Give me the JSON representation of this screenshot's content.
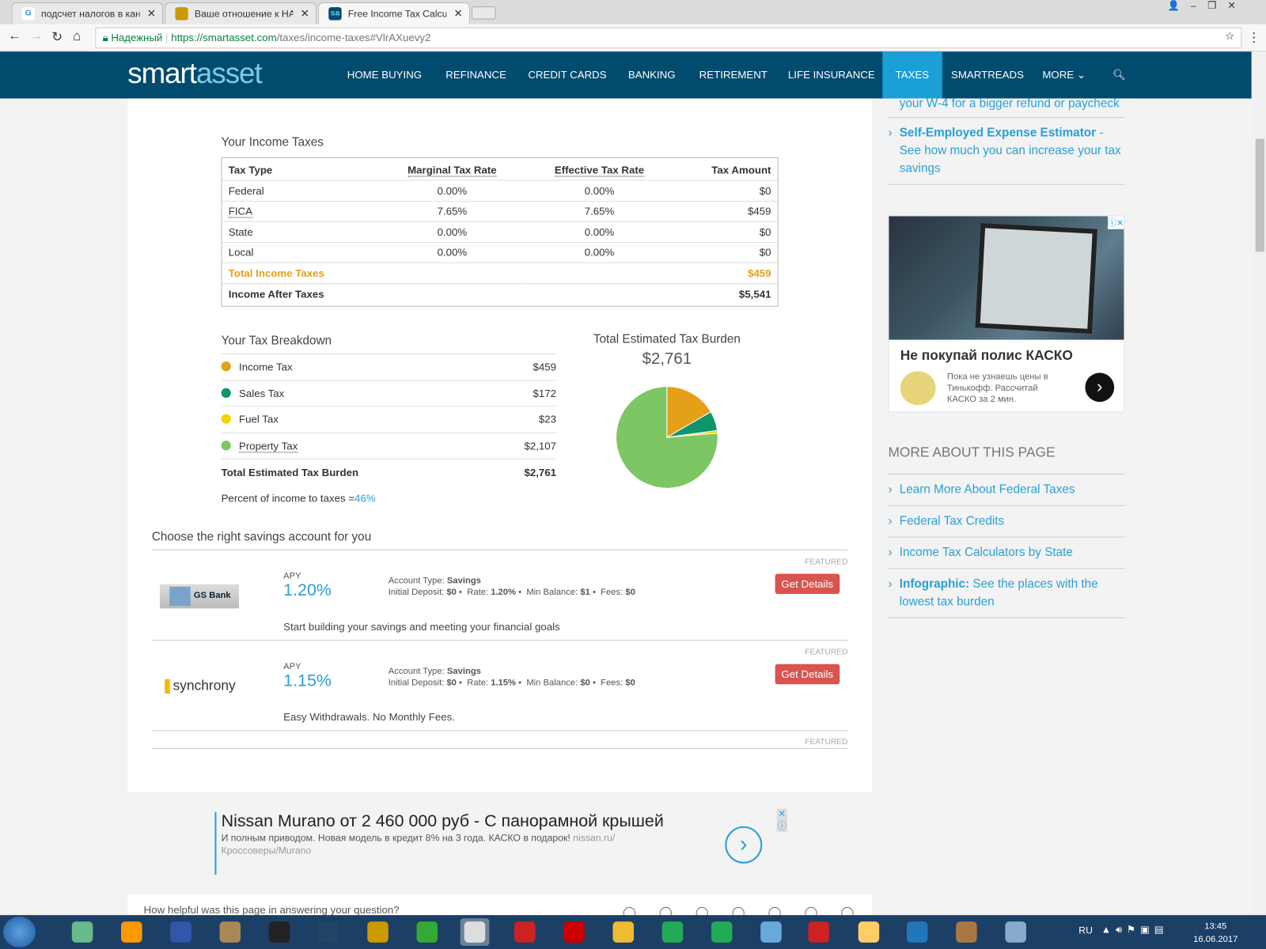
{
  "browser": {
    "tabs": [
      {
        "title": "подсчет налогов в кана",
        "icon": "google-icon"
      },
      {
        "title": "Ваше отношение к НАВ",
        "icon": "habr-icon"
      },
      {
        "title": "Free Income Tax Calculat",
        "icon": "smartasset-icon"
      }
    ],
    "secure_label": "Надежный",
    "url_host": "https://smartasset.com",
    "url_path": "/taxes/income-taxes#VlrAXuevy2"
  },
  "nav": {
    "logo_a": "smart",
    "logo_b": "asset",
    "items": [
      "HOME BUYING",
      "REFINANCE",
      "CREDIT CARDS",
      "BANKING",
      "RETIREMENT",
      "LIFE INSURANCE",
      "TAXES",
      "SMARTREADS",
      "MORE"
    ],
    "active": "TAXES"
  },
  "income_taxes": {
    "title": "Your Income Taxes",
    "headers": [
      "Tax Type",
      "Marginal Tax Rate",
      "Effective Tax Rate",
      "Tax Amount"
    ],
    "rows": [
      [
        "Federal",
        "0.00%",
        "0.00%",
        "$0"
      ],
      [
        "FICA",
        "7.65%",
        "7.65%",
        "$459"
      ],
      [
        "State",
        "0.00%",
        "0.00%",
        "$0"
      ],
      [
        "Local",
        "0.00%",
        "0.00%",
        "$0"
      ]
    ],
    "total_label": "Total Income Taxes",
    "total_value": "$459",
    "after_label": "Income After Taxes",
    "after_value": "$5,541"
  },
  "breakdown": {
    "title": "Your Tax Breakdown",
    "items": [
      {
        "label": "Income Tax",
        "value": "$459",
        "color": "#e5a019"
      },
      {
        "label": "Sales Tax",
        "value": "$172",
        "color": "#10956b"
      },
      {
        "label": "Fuel Tax",
        "value": "$23",
        "color": "#f5d400"
      },
      {
        "label": "Property Tax",
        "value": "$2,107",
        "color": "#7dc664"
      }
    ],
    "total_label": "Total Estimated Tax Burden",
    "total_value": "$2,761",
    "percent_label": "Percent of income to taxes = ",
    "percent_value": "46%"
  },
  "chart_data": {
    "type": "pie",
    "title": "Total Estimated Tax Burden",
    "subtitle": "$2,761",
    "categories": [
      "Income Tax",
      "Sales Tax",
      "Fuel Tax",
      "Property Tax"
    ],
    "values": [
      459,
      172,
      23,
      2107
    ],
    "colors": [
      "#e5a019",
      "#10956b",
      "#f5d400",
      "#7dc664"
    ]
  },
  "savings": {
    "title": "Choose the right savings account for you",
    "featured": "FEATURED",
    "apy_label": "APY",
    "button": "Get Details",
    "offers": [
      {
        "bank": "GS Bank",
        "apy": "1.20%",
        "type": "Savings",
        "deposit": "$0",
        "rate": "1.20%",
        "min": "$1",
        "fees": "$0",
        "desc": "Start building your savings and meeting your financial goals"
      },
      {
        "bank": "synchrony",
        "apy": "1.15%",
        "type": "Savings",
        "deposit": "$0",
        "rate": "1.15%",
        "min": "$0",
        "fees": "$0",
        "desc": "Easy Withdrawals. No Monthly Fees."
      }
    ],
    "labels": {
      "type": "Account Type: ",
      "deposit": "Initial Deposit: ",
      "rate": "Rate: ",
      "min": "Min Balance: ",
      "fees": "Fees: "
    }
  },
  "sidebar": {
    "top_text": "your W-4 for a bigger refund or paycheck",
    "se_bold": "Self-Employed Expense Estimator",
    "se_text": " - See how much you can increase your tax savings",
    "ad": {
      "title": "Не покупай полис КАСКО",
      "text": "Пока не узнаешь цены в Тинькофф. Рассчитай КАСКО за 2 мин."
    },
    "more_title": "MORE ABOUT THIS PAGE",
    "links": [
      "Learn More About Federal Taxes",
      "Federal Tax Credits",
      "Income Tax Calculators by State"
    ],
    "info_bold": "Infographic:",
    "info_text": " See the places with the lowest tax burden"
  },
  "bottom_ad": {
    "title": "Nissan Murano от 2 460 000 руб - С панорамной крышей",
    "text": "И полным приводом. Новая модель в кредит 8% на 3 года. КАСКО в подарок! ",
    "url": "nissan.ru/ Кроссоверы/Murano"
  },
  "feedback": "How helpful was this page in answering your question?",
  "taskbar": {
    "lang": "RU",
    "time": "13:45",
    "date": "16.06.2017"
  }
}
